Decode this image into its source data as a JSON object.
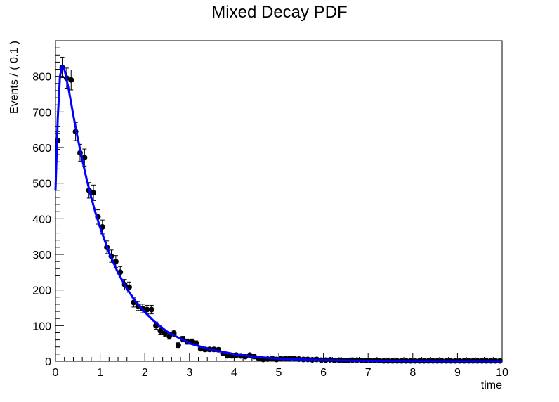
{
  "chart_data": {
    "type": "scatter",
    "title": "Mixed Decay PDF",
    "xlabel": "time",
    "ylabel": "Events / ( 0.1 )",
    "xlim": [
      0,
      10
    ],
    "ylim": [
      0,
      900
    ],
    "x_ticks": [
      0,
      1,
      2,
      3,
      4,
      5,
      6,
      7,
      8,
      9,
      10
    ],
    "y_ticks": [
      0,
      100,
      200,
      300,
      400,
      500,
      600,
      700,
      800
    ],
    "grid": false,
    "legend": "none",
    "series": [
      {
        "kind": "points-with-errors",
        "color": "#000000",
        "x": [
          0.05,
          0.15,
          0.25,
          0.35,
          0.45,
          0.55,
          0.65,
          0.75,
          0.85,
          0.95,
          1.05,
          1.15,
          1.25,
          1.35,
          1.45,
          1.55,
          1.65,
          1.75,
          1.85,
          1.95,
          2.05,
          2.15,
          2.25,
          2.35,
          2.45,
          2.55,
          2.65,
          2.75,
          2.85,
          2.95,
          3.05,
          3.15,
          3.25,
          3.35,
          3.45,
          3.55,
          3.65,
          3.75,
          3.85,
          3.95,
          4.05,
          4.15,
          4.25,
          4.35,
          4.45,
          4.55,
          4.65,
          4.75,
          4.85,
          4.95,
          5.05,
          5.15,
          5.25,
          5.35,
          5.45,
          5.55,
          5.65,
          5.75,
          5.85,
          5.95,
          6.05,
          6.15,
          6.25,
          6.35,
          6.45,
          6.55,
          6.65,
          6.75,
          6.85,
          6.95,
          7.05,
          7.15,
          7.25,
          7.35,
          7.45,
          7.55,
          7.65,
          7.75,
          7.85,
          7.95,
          8.05,
          8.15,
          8.25,
          8.35,
          8.45,
          8.55,
          8.65,
          8.75,
          8.85,
          8.95,
          9.05,
          9.15,
          9.25,
          9.35,
          9.45,
          9.55,
          9.65,
          9.75,
          9.85,
          9.95
        ],
        "y": [
          620,
          825,
          795,
          790,
          645,
          585,
          572,
          480,
          473,
          405,
          377,
          320,
          295,
          280,
          250,
          215,
          208,
          165,
          155,
          148,
          145,
          145,
          100,
          85,
          78,
          70,
          78,
          45,
          62,
          55,
          55,
          50,
          35,
          33,
          33,
          33,
          32,
          22,
          15,
          15,
          17,
          15,
          13,
          17,
          13,
          8,
          5,
          6,
          8,
          5,
          7,
          8,
          8,
          8,
          6,
          5,
          5,
          4,
          5,
          3,
          3,
          4,
          2,
          3,
          2,
          2,
          3,
          3,
          2,
          2,
          2,
          2,
          2,
          1,
          1,
          1,
          1,
          1,
          1,
          1,
          1,
          1,
          1,
          1,
          1,
          1,
          1,
          1,
          1,
          1,
          1,
          1,
          1,
          1,
          1,
          1,
          1,
          1,
          1,
          1
        ]
      },
      {
        "kind": "fit-curve",
        "color": "#0000ff",
        "x": [
          0,
          0.05,
          0.1,
          0.15,
          0.2,
          0.3,
          0.4,
          0.5,
          0.6,
          0.7,
          0.8,
          0.9,
          1.0,
          1.2,
          1.4,
          1.6,
          1.8,
          2.0,
          2.2,
          2.5,
          3.0,
          3.5,
          4.0,
          4.5,
          5.0,
          5.5,
          6.0,
          7.0,
          8.0,
          9.0,
          10.0
        ],
        "y": [
          480,
          680,
          800,
          830,
          820,
          760,
          690,
          625,
          565,
          510,
          460,
          415,
          375,
          305,
          248,
          203,
          167,
          138,
          113,
          83,
          50,
          32,
          20,
          12,
          7,
          5,
          3,
          1,
          0.5,
          0.3,
          0.1
        ]
      }
    ]
  }
}
